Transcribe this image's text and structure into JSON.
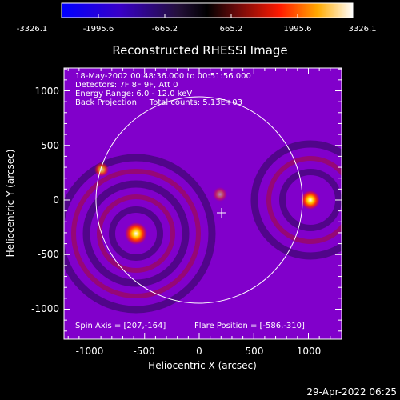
{
  "colorbar": {
    "ticks": [
      "-3326.1",
      "-1995.6",
      "-665.2",
      "665.2",
      "1995.6",
      "3326.1"
    ]
  },
  "plot": {
    "title": "Reconstructed RHESSI Image",
    "xlabel": "Heliocentric X (arcsec)",
    "ylabel": "Heliocentric Y (arcsec)",
    "x_ticks": [
      "-1000",
      "-500",
      "0",
      "500",
      "1000"
    ],
    "y_ticks": [
      "1000",
      "500",
      "0",
      "-500",
      "-1000"
    ],
    "annotations": {
      "line1": "18-May-2002 00:48:36.000 to 00:51:56.000",
      "line2": "Detectors: 7F 8F 9F, Att 0",
      "line3": "Energy Range: 6.0 - 12.0 keV",
      "line4": "Back Projection     Total counts: 5.13E+03",
      "spin_axis": "Spin Axis = [207,-164]",
      "flare_position": "Flare Position = [-586,-310]"
    }
  },
  "timestamp": "29-Apr-2022 06:25",
  "colors": {
    "background": "#000000",
    "text": "#ffffff"
  }
}
